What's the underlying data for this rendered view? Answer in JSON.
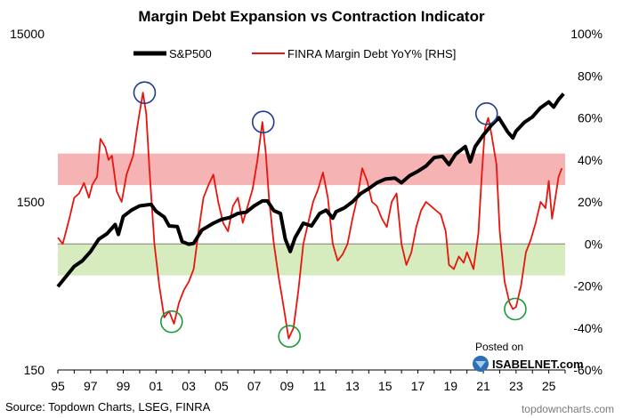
{
  "chart_data": {
    "type": "line",
    "title": "Margin Debt Expansion vs Contraction Indicator",
    "x_ticks": [
      "95",
      "97",
      "99",
      "01",
      "03",
      "05",
      "07",
      "09",
      "11",
      "13",
      "15",
      "17",
      "19",
      "21",
      "23",
      "25"
    ],
    "x_range": [
      1995,
      2026
    ],
    "left_axis": {
      "scale": "log",
      "ticks": [
        "15000",
        "1500",
        "150"
      ],
      "range": [
        150,
        15000
      ]
    },
    "right_axis": {
      "ticks": [
        "100%",
        "80%",
        "60%",
        "40%",
        "20%",
        "0%",
        "-20%",
        "-40%",
        "-60%"
      ],
      "range": [
        -60,
        100
      ]
    },
    "bands": [
      {
        "name": "expansion-band",
        "from": 28,
        "to": 43,
        "color": "#f6b3b3"
      },
      {
        "name": "contraction-band",
        "from": -15,
        "to": 0,
        "color": "#d6ecbf"
      }
    ],
    "series": [
      {
        "name": "S&P500",
        "axis": "left",
        "color": "#000000",
        "points": [
          [
            1995.0,
            470
          ],
          [
            1995.5,
            540
          ],
          [
            1996.0,
            620
          ],
          [
            1996.5,
            670
          ],
          [
            1997.0,
            760
          ],
          [
            1997.5,
            900
          ],
          [
            1998.0,
            970
          ],
          [
            1998.5,
            1100
          ],
          [
            1998.7,
            960
          ],
          [
            1999.0,
            1230
          ],
          [
            1999.5,
            1340
          ],
          [
            2000.0,
            1420
          ],
          [
            2000.7,
            1450
          ],
          [
            2001.0,
            1320
          ],
          [
            2001.5,
            1220
          ],
          [
            2001.8,
            1080
          ],
          [
            2002.3,
            1070
          ],
          [
            2002.6,
            870
          ],
          [
            2003.0,
            840
          ],
          [
            2003.3,
            850
          ],
          [
            2003.8,
            1020
          ],
          [
            2004.5,
            1120
          ],
          [
            2005.0,
            1180
          ],
          [
            2005.5,
            1210
          ],
          [
            2006.0,
            1280
          ],
          [
            2006.5,
            1300
          ],
          [
            2007.0,
            1420
          ],
          [
            2007.5,
            1520
          ],
          [
            2007.8,
            1520
          ],
          [
            2008.2,
            1330
          ],
          [
            2008.6,
            1280
          ],
          [
            2008.9,
            900
          ],
          [
            2009.2,
            760
          ],
          [
            2009.5,
            920
          ],
          [
            2010.0,
            1120
          ],
          [
            2010.5,
            1080
          ],
          [
            2011.0,
            1280
          ],
          [
            2011.4,
            1340
          ],
          [
            2011.8,
            1200
          ],
          [
            2012.0,
            1310
          ],
          [
            2012.5,
            1380
          ],
          [
            2013.0,
            1500
          ],
          [
            2013.5,
            1680
          ],
          [
            2014.0,
            1800
          ],
          [
            2014.5,
            1950
          ],
          [
            2015.0,
            2050
          ],
          [
            2015.6,
            2080
          ],
          [
            2016.0,
            1950
          ],
          [
            2016.5,
            2150
          ],
          [
            2017.0,
            2280
          ],
          [
            2017.5,
            2450
          ],
          [
            2018.0,
            2750
          ],
          [
            2018.5,
            2800
          ],
          [
            2018.9,
            2500
          ],
          [
            2019.3,
            2880
          ],
          [
            2019.9,
            3200
          ],
          [
            2020.2,
            2600
          ],
          [
            2020.5,
            3200
          ],
          [
            2021.0,
            3750
          ],
          [
            2021.5,
            4300
          ],
          [
            2021.95,
            4750
          ],
          [
            2022.5,
            3900
          ],
          [
            2022.8,
            3600
          ],
          [
            2023.0,
            3950
          ],
          [
            2023.5,
            4450
          ],
          [
            2024.0,
            4800
          ],
          [
            2024.5,
            5450
          ],
          [
            2025.0,
            5900
          ],
          [
            2025.3,
            5500
          ],
          [
            2025.6,
            6100
          ],
          [
            2025.9,
            6600
          ]
        ]
      },
      {
        "name": "FINRA Margin Debt YoY% [RHS]",
        "axis": "right",
        "color": "#e8150e",
        "points": [
          [
            1995.0,
            3
          ],
          [
            1995.3,
            0
          ],
          [
            1995.7,
            12
          ],
          [
            1996.0,
            22
          ],
          [
            1996.3,
            24
          ],
          [
            1996.6,
            29
          ],
          [
            1996.9,
            22
          ],
          [
            1997.1,
            28
          ],
          [
            1997.4,
            32
          ],
          [
            1997.6,
            50
          ],
          [
            1997.9,
            46
          ],
          [
            1998.1,
            40
          ],
          [
            1998.3,
            42
          ],
          [
            1998.6,
            25
          ],
          [
            1998.9,
            20
          ],
          [
            1999.2,
            33
          ],
          [
            1999.6,
            42
          ],
          [
            1999.9,
            58
          ],
          [
            2000.2,
            72
          ],
          [
            2000.4,
            62
          ],
          [
            2000.6,
            35
          ],
          [
            2000.9,
            0
          ],
          [
            2001.2,
            -20
          ],
          [
            2001.5,
            -35
          ],
          [
            2001.8,
            -32
          ],
          [
            2002.1,
            -38
          ],
          [
            2002.4,
            -28
          ],
          [
            2002.7,
            -22
          ],
          [
            2003.0,
            -18
          ],
          [
            2003.3,
            -12
          ],
          [
            2003.6,
            6
          ],
          [
            2003.9,
            22
          ],
          [
            2004.2,
            28
          ],
          [
            2004.5,
            33
          ],
          [
            2004.8,
            20
          ],
          [
            2005.1,
            10
          ],
          [
            2005.4,
            6
          ],
          [
            2005.7,
            18
          ],
          [
            2006.0,
            22
          ],
          [
            2006.3,
            10
          ],
          [
            2006.6,
            18
          ],
          [
            2006.9,
            26
          ],
          [
            2007.2,
            40
          ],
          [
            2007.5,
            58
          ],
          [
            2007.7,
            44
          ],
          [
            2007.9,
            22
          ],
          [
            2008.2,
            0
          ],
          [
            2008.5,
            -16
          ],
          [
            2008.8,
            -30
          ],
          [
            2009.1,
            -45
          ],
          [
            2009.4,
            -40
          ],
          [
            2009.7,
            -22
          ],
          [
            2010.0,
            0
          ],
          [
            2010.3,
            10
          ],
          [
            2010.6,
            20
          ],
          [
            2010.9,
            26
          ],
          [
            2011.2,
            34
          ],
          [
            2011.5,
            22
          ],
          [
            2011.8,
            0
          ],
          [
            2012.1,
            -8
          ],
          [
            2012.4,
            -5
          ],
          [
            2012.7,
            0
          ],
          [
            2013.0,
            12
          ],
          [
            2013.3,
            22
          ],
          [
            2013.6,
            36
          ],
          [
            2013.9,
            30
          ],
          [
            2014.2,
            20
          ],
          [
            2014.5,
            18
          ],
          [
            2014.8,
            12
          ],
          [
            2015.1,
            8
          ],
          [
            2015.4,
            20
          ],
          [
            2015.7,
            24
          ],
          [
            2016.0,
            0
          ],
          [
            2016.3,
            -10
          ],
          [
            2016.6,
            -4
          ],
          [
            2016.9,
            8
          ],
          [
            2017.2,
            16
          ],
          [
            2017.5,
            20
          ],
          [
            2017.8,
            18
          ],
          [
            2018.1,
            16
          ],
          [
            2018.4,
            14
          ],
          [
            2018.7,
            6
          ],
          [
            2018.9,
            -10
          ],
          [
            2019.2,
            -12
          ],
          [
            2019.5,
            -6
          ],
          [
            2019.8,
            -9
          ],
          [
            2020.0,
            -4
          ],
          [
            2020.2,
            -8
          ],
          [
            2020.4,
            -12
          ],
          [
            2020.7,
            5
          ],
          [
            2020.9,
            32
          ],
          [
            2021.1,
            55
          ],
          [
            2021.3,
            60
          ],
          [
            2021.5,
            52
          ],
          [
            2021.8,
            38
          ],
          [
            2022.0,
            6
          ],
          [
            2022.3,
            -18
          ],
          [
            2022.6,
            -28
          ],
          [
            2022.8,
            -31
          ],
          [
            2023.0,
            -30
          ],
          [
            2023.3,
            -20
          ],
          [
            2023.6,
            -4
          ],
          [
            2023.9,
            2
          ],
          [
            2024.2,
            10
          ],
          [
            2024.5,
            20
          ],
          [
            2024.8,
            17
          ],
          [
            2025.0,
            30
          ],
          [
            2025.2,
            12
          ],
          [
            2025.4,
            22
          ],
          [
            2025.6,
            32
          ],
          [
            2025.8,
            36
          ]
        ]
      }
    ],
    "highlights": [
      {
        "name": "blue-circle-2000-peak",
        "x": 2000.3,
        "y": 72,
        "color": "#1f3b8c"
      },
      {
        "name": "blue-circle-2007-peak",
        "x": 2007.55,
        "y": 58,
        "color": "#1f3b8c"
      },
      {
        "name": "blue-circle-2021-peak",
        "x": 2021.2,
        "y": 62,
        "color": "#1f3b8c"
      },
      {
        "name": "green-circle-2002-trough",
        "x": 2001.95,
        "y": -37,
        "color": "#1c9a3a"
      },
      {
        "name": "green-circle-2009-trough",
        "x": 2009.15,
        "y": -44,
        "color": "#1c9a3a"
      },
      {
        "name": "green-circle-2023-trough",
        "x": 2022.95,
        "y": -31,
        "color": "#1c9a3a"
      }
    ]
  },
  "legend": {
    "sp500": "S&P500",
    "margin": "FINRA Margin Debt YoY% [RHS]"
  },
  "source": "Source: Topdown Charts, LSEG, FINRA",
  "badge": {
    "posted_on": "Posted on",
    "site": "ISABELNET.com"
  },
  "watermark": "topdowncharts.com"
}
